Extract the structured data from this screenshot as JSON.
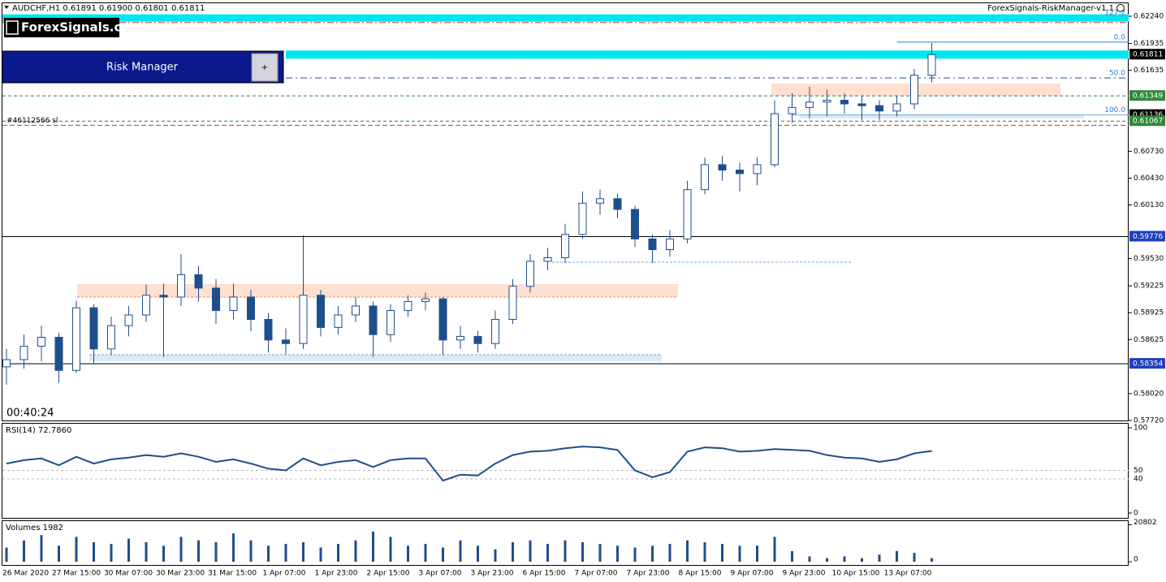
{
  "header": {
    "indicator": "ForexSignals-RiskManager-v1.1",
    "logo": "ForexSignals.com"
  },
  "panel": {
    "title": "Risk Manager",
    "button": "+"
  },
  "chart_data": [
    {
      "type": "candlestick",
      "title": "AUDCHF,H1  0.61891 0.61900 0.61801 0.61811",
      "timer": "00:40:24",
      "color": "#1f4e8c",
      "time_labels": [
        "26 Mar 2020",
        "27 Mar 15:00",
        "30 Mar 07:00",
        "30 Mar 23:00",
        "31 Mar 15:00",
        "1 Apr 07:00",
        "1 Apr 23:00",
        "2 Apr 15:00",
        "3 Apr 07:00",
        "3 Apr 23:00",
        "6 Apr 15:00",
        "7 Apr 07:00",
        "7 Apr 23:00",
        "8 Apr 15:00",
        "9 Apr 07:00",
        "9 Apr 23:00",
        "10 Apr 15:00",
        "13 Apr 07:00"
      ],
      "open": [
        0.5832,
        0.584,
        0.5855,
        0.5865,
        0.5828,
        0.5898,
        0.5852,
        0.5878,
        0.589,
        0.5912,
        0.591,
        0.5935,
        0.592,
        0.5895,
        0.591,
        0.5885,
        0.5862,
        0.5858,
        0.5912,
        0.5876,
        0.589,
        0.59,
        0.5868,
        0.5895,
        0.5905,
        0.5908,
        0.5862,
        0.5866,
        0.5858,
        0.5885,
        0.5922,
        0.595,
        0.5954,
        0.598,
        0.6015,
        0.602,
        0.6008,
        0.5975,
        0.5963,
        0.5975,
        0.603,
        0.6058,
        0.6052,
        0.6048,
        0.6058,
        0.6115,
        0.6122,
        0.6128,
        0.613,
        0.6126,
        0.6124,
        0.6118,
        0.6126,
        0.6158
      ],
      "high": [
        0.5852,
        0.5868,
        0.5878,
        0.587,
        0.5906,
        0.5902,
        0.5888,
        0.59,
        0.5924,
        0.5925,
        0.5958,
        0.5945,
        0.593,
        0.5925,
        0.5918,
        0.5892,
        0.5875,
        0.5979,
        0.5918,
        0.59,
        0.591,
        0.5905,
        0.5902,
        0.5912,
        0.5915,
        0.591,
        0.5878,
        0.5872,
        0.5895,
        0.593,
        0.5958,
        0.5965,
        0.5992,
        0.6028,
        0.603,
        0.6026,
        0.6012,
        0.598,
        0.5985,
        0.604,
        0.6066,
        0.6068,
        0.606,
        0.6066,
        0.613,
        0.6138,
        0.6145,
        0.6142,
        0.6138,
        0.6135,
        0.613,
        0.6135,
        0.6165,
        0.6194
      ],
      "low": [
        0.5812,
        0.583,
        0.5838,
        0.5814,
        0.5825,
        0.5835,
        0.5845,
        0.5866,
        0.5882,
        0.5843,
        0.59,
        0.5905,
        0.588,
        0.5885,
        0.5872,
        0.5848,
        0.5846,
        0.5852,
        0.5866,
        0.5868,
        0.5882,
        0.5843,
        0.586,
        0.5888,
        0.5895,
        0.5845,
        0.5852,
        0.5848,
        0.5852,
        0.588,
        0.5915,
        0.594,
        0.5948,
        0.5975,
        0.6002,
        0.5998,
        0.5966,
        0.5948,
        0.5955,
        0.597,
        0.6025,
        0.604,
        0.6028,
        0.6035,
        0.6055,
        0.6105,
        0.611,
        0.6112,
        0.6115,
        0.6108,
        0.6108,
        0.6112,
        0.612,
        0.615
      ],
      "close": [
        0.584,
        0.5855,
        0.5865,
        0.5828,
        0.5898,
        0.5852,
        0.5878,
        0.589,
        0.5912,
        0.591,
        0.5935,
        0.592,
        0.5895,
        0.591,
        0.5885,
        0.5862,
        0.5858,
        0.5912,
        0.5876,
        0.589,
        0.59,
        0.5868,
        0.5895,
        0.5905,
        0.5908,
        0.5862,
        0.5866,
        0.5858,
        0.5885,
        0.5922,
        0.595,
        0.5954,
        0.598,
        0.6015,
        0.602,
        0.6008,
        0.5975,
        0.5963,
        0.5975,
        0.603,
        0.6058,
        0.6052,
        0.6048,
        0.6058,
        0.6115,
        0.6122,
        0.6128,
        0.613,
        0.6126,
        0.6124,
        0.6118,
        0.6126,
        0.6158,
        0.61811
      ],
      "ylim": [
        0.5772,
        0.62385
      ],
      "yticks": [
        {
          "value": 0.6224,
          "label": "0.62240"
        },
        {
          "value": 0.61935,
          "label": "0.61935"
        },
        {
          "value": 0.61635,
          "label": "0.61635"
        },
        {
          "value": 0.6073,
          "label": "0.60730"
        },
        {
          "value": 0.6043,
          "label": "0.60430"
        },
        {
          "value": 0.6013,
          "label": "0.60130"
        },
        {
          "value": 0.5953,
          "label": "0.59530"
        },
        {
          "value": 0.59225,
          "label": "0.59225"
        },
        {
          "value": 0.58925,
          "label": "0.58925"
        },
        {
          "value": 0.58625,
          "label": "0.58625"
        },
        {
          "value": 0.5802,
          "label": "0.58020"
        },
        {
          "value": 0.5772,
          "label": "0.57720"
        }
      ],
      "levels": [
        {
          "value": 0.6222,
          "color": "#00e5ee",
          "width": 9,
          "label": "127.2",
          "label_side": "right"
        },
        {
          "value": 0.6217,
          "color": "#e0322d",
          "width": 1,
          "dash": "8 3 2 3"
        },
        {
          "value": 0.6195,
          "color": "#2a7fd4",
          "width": 1,
          "from": 51,
          "label": "0.0",
          "label_side": "right"
        },
        {
          "value": 0.61811,
          "color": "#00e5ee",
          "width": 10,
          "from": 16,
          "box": "#000000"
        },
        {
          "value": 0.6155,
          "color": "#1f4e9c",
          "width": 1,
          "dash": "8 4 2 4",
          "from": 16,
          "label": "50.0",
          "label_side": "right"
        },
        {
          "value": 0.61349,
          "color": "#2e7d32",
          "width": 1,
          "dash": "4 3",
          "box": "#2e8b3a"
        },
        {
          "value": 0.61136,
          "color": "#6fa8dc",
          "width": 1,
          "from": 45,
          "label": "100.0",
          "label_side": "right",
          "box": "#000000"
        },
        {
          "value": 0.61067,
          "color": "#2e7d32",
          "width": 1,
          "dash": "4 3",
          "box": "#2e8b3a"
        },
        {
          "value": 0.6102,
          "color": "#e0322d",
          "width": 1,
          "dash": "6 3",
          "label": "#46112566 sl",
          "label_side": "left"
        },
        {
          "value": 0.59776,
          "color": "#000000",
          "width": 1,
          "box": "#1f3fbf"
        },
        {
          "value": 0.58354,
          "color": "#000000",
          "width": 1,
          "box": "#1f3fbf"
        }
      ]
    },
    {
      "type": "line",
      "title": "RSI(14) 72.7860",
      "color": "#1f4e8c",
      "values": [
        58,
        62,
        64,
        56,
        66,
        58,
        63,
        65,
        68,
        66,
        70,
        66,
        60,
        63,
        58,
        52,
        50,
        64,
        56,
        60,
        62,
        54,
        62,
        64,
        64,
        38,
        45,
        44,
        58,
        68,
        72,
        73,
        76,
        78,
        77,
        74,
        50,
        42,
        48,
        72,
        77,
        76,
        72,
        73,
        75,
        74,
        73,
        68,
        65,
        64,
        60,
        63,
        70,
        72.786
      ],
      "ylim": [
        0,
        100
      ],
      "yticks": [
        100,
        50,
        40,
        0
      ]
    },
    {
      "type": "bar",
      "title": "Volumes 1982",
      "color": "#1f4e8c",
      "values": [
        8000,
        12000,
        15000,
        9000,
        14000,
        11000,
        10000,
        13000,
        11000,
        9000,
        14000,
        12000,
        11000,
        16000,
        12000,
        9000,
        10000,
        11000,
        8000,
        10000,
        12000,
        17000,
        14000,
        9000,
        10000,
        8000,
        12000,
        9000,
        7000,
        11000,
        12000,
        10000,
        12000,
        11000,
        10000,
        9000,
        8000,
        9000,
        10000,
        12000,
        11000,
        10000,
        9000,
        9000,
        14000,
        6000,
        3000,
        2000,
        3000,
        2000,
        4000,
        6000,
        5000,
        1982
      ],
      "ylim": [
        0,
        23770
      ],
      "yticks": [
        20802,
        0
      ]
    }
  ]
}
